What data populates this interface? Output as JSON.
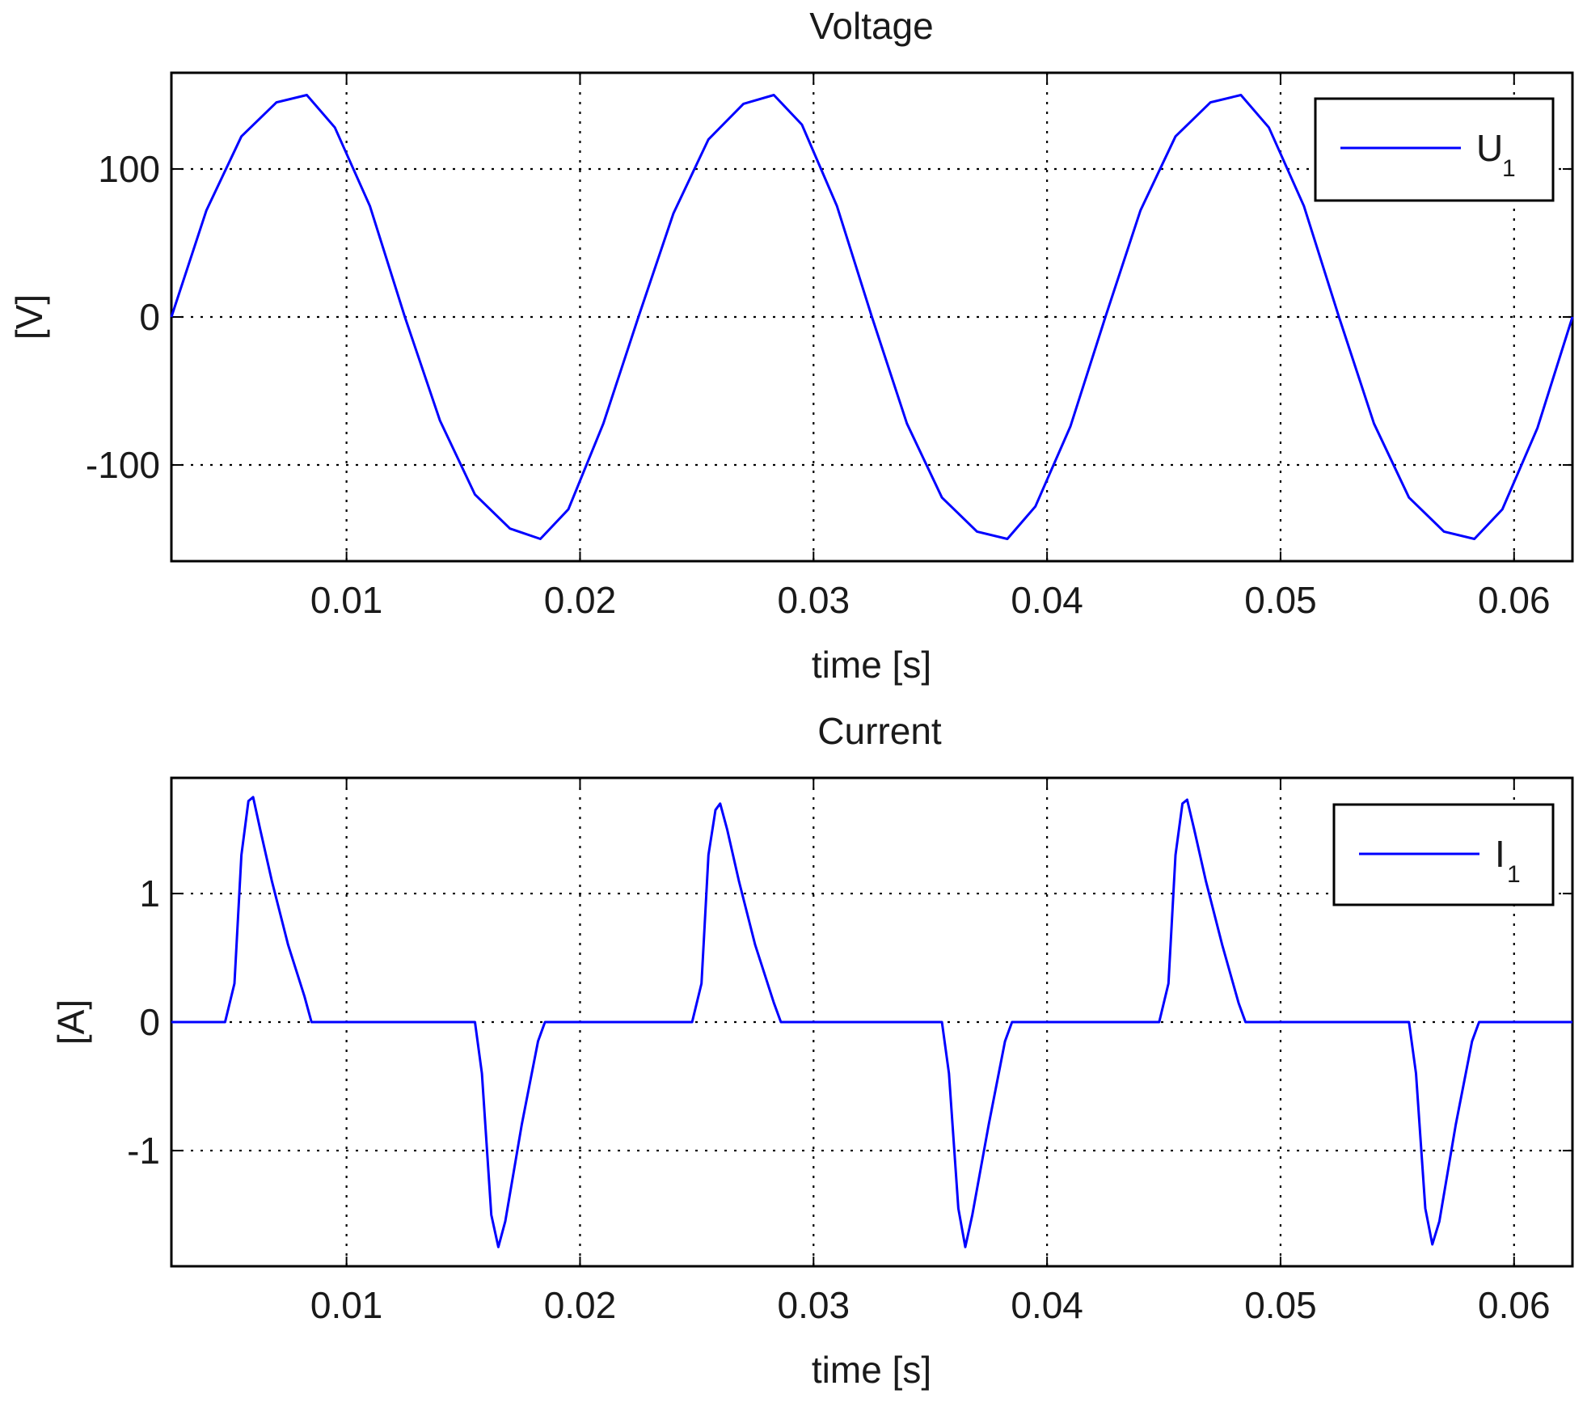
{
  "chart_data": [
    {
      "type": "line",
      "title": "Voltage",
      "xlabel": "time [s]",
      "ylabel": "[V]",
      "xlim": [
        0.0025,
        0.0625
      ],
      "ylim": [
        -165,
        165
      ],
      "xticks": [
        0.01,
        0.02,
        0.03,
        0.04,
        0.05,
        0.06
      ],
      "xtick_labels": [
        "0.01",
        "0.02",
        "0.03",
        "0.04",
        "0.05",
        "0.06"
      ],
      "yticks": [
        100,
        0,
        -100
      ],
      "ytick_labels": [
        "100",
        "0",
        "-100"
      ],
      "grid": true,
      "legend_position": "top-right",
      "line_color": "#0000ff",
      "series": [
        {
          "name": "U1",
          "legend_label": "U",
          "legend_subscript": "1",
          "x": [
            0.0025,
            0.004,
            0.0055,
            0.007,
            0.0083,
            0.0095,
            0.011,
            0.0125,
            0.014,
            0.0155,
            0.017,
            0.0183,
            0.0195,
            0.021,
            0.0225,
            0.024,
            0.0255,
            0.027,
            0.0283,
            0.0295,
            0.031,
            0.0325,
            0.034,
            0.0355,
            0.037,
            0.0383,
            0.0395,
            0.041,
            0.0425,
            0.044,
            0.0455,
            0.047,
            0.0483,
            0.0495,
            0.051,
            0.0525,
            0.054,
            0.0555,
            0.057,
            0.0583,
            0.0595,
            0.061,
            0.0625
          ],
          "y": [
            0,
            72,
            122,
            145,
            150,
            128,
            75,
            0,
            -70,
            -120,
            -143,
            -150,
            -130,
            -72,
            0,
            70,
            120,
            144,
            150,
            130,
            75,
            0,
            -72,
            -122,
            -145,
            -150,
            -128,
            -74,
            0,
            72,
            122,
            145,
            150,
            128,
            75,
            0,
            -72,
            -122,
            -145,
            -150,
            -130,
            -75,
            0
          ]
        }
      ]
    },
    {
      "type": "line",
      "title": "Current",
      "xlabel": "time [s]",
      "ylabel": "[A]",
      "xlim": [
        0.0025,
        0.0625
      ],
      "ylim": [
        -1.9,
        1.9
      ],
      "xticks": [
        0.01,
        0.02,
        0.03,
        0.04,
        0.05,
        0.06
      ],
      "xtick_labels": [
        "0.01",
        "0.02",
        "0.03",
        "0.04",
        "0.05",
        "0.06"
      ],
      "yticks": [
        1,
        0,
        -1
      ],
      "ytick_labels": [
        "1",
        "0",
        "-1"
      ],
      "grid": true,
      "legend_position": "top-right",
      "line_color": "#0000ff",
      "series": [
        {
          "name": "I1",
          "legend_label": "I",
          "legend_subscript": "1",
          "x": [
            0.0025,
            0.0048,
            0.0052,
            0.0055,
            0.0058,
            0.006,
            0.0063,
            0.0068,
            0.0075,
            0.0082,
            0.0085,
            0.0095,
            0.0155,
            0.0158,
            0.0162,
            0.0165,
            0.0168,
            0.0175,
            0.0182,
            0.0185,
            0.0195,
            0.0248,
            0.0252,
            0.0255,
            0.0258,
            0.026,
            0.0263,
            0.0268,
            0.0275,
            0.0283,
            0.0286,
            0.0295,
            0.0355,
            0.0358,
            0.0362,
            0.0365,
            0.0368,
            0.0375,
            0.0382,
            0.0385,
            0.0395,
            0.0448,
            0.0452,
            0.0455,
            0.0458,
            0.046,
            0.0463,
            0.0468,
            0.0475,
            0.0482,
            0.0485,
            0.0495,
            0.0555,
            0.0558,
            0.0562,
            0.0565,
            0.0568,
            0.0575,
            0.0582,
            0.0585,
            0.0595,
            0.0625
          ],
          "y": [
            0,
            0,
            0.3,
            1.3,
            1.72,
            1.75,
            1.5,
            1.1,
            0.6,
            0.2,
            0,
            0,
            0,
            -0.4,
            -1.5,
            -1.75,
            -1.55,
            -0.8,
            -0.15,
            0,
            0,
            0,
            0.3,
            1.3,
            1.65,
            1.7,
            1.5,
            1.1,
            0.6,
            0.15,
            0,
            0,
            0,
            -0.4,
            -1.45,
            -1.75,
            -1.5,
            -0.8,
            -0.15,
            0,
            0,
            0,
            0.3,
            1.3,
            1.7,
            1.73,
            1.5,
            1.1,
            0.6,
            0.15,
            0,
            0,
            0,
            -0.4,
            -1.45,
            -1.73,
            -1.55,
            -0.8,
            -0.15,
            0,
            0,
            0
          ]
        }
      ]
    }
  ]
}
